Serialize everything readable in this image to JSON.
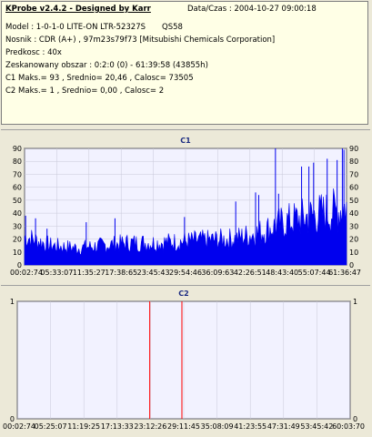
{
  "info": {
    "app_title": "KProbe v2.4.2 - Designed by Karr",
    "date_label": "Data/Czas : 2004-10-27 09:00:18",
    "model": "Model : 1-0-1-0 LITE-ON LTR-52327S",
    "model_extra": "QS58",
    "media": "Nosnik : CDR (A+) , 97m23s79f73 [Mitsubishi Chemicals Corporation]",
    "speed": "Predkosc : 40x",
    "scanned": "Zeskanowany obszar : 0:2:0 (0) - 61:39:58 (43855h)",
    "c1_stats": "C1 Maks.= 93 , Srednio= 20,46 , Calosc= 73505",
    "c2_stats": "C2 Maks.= 1 , Srednio= 0,00 , Calosc= 2"
  },
  "colors": {
    "c1_fill": "#0000ee",
    "c2_line": "#ff0000",
    "plot_bg": "#f2f2ff",
    "grid": "#c8c8d8"
  },
  "chart_data": [
    {
      "type": "area",
      "title": "C1",
      "ylim": [
        0,
        90
      ],
      "yticks": [
        0,
        10,
        20,
        30,
        40,
        50,
        60,
        70,
        80,
        90
      ],
      "xticks": [
        "00:02:74",
        "05:33:07",
        "11:35:27",
        "17:38:65",
        "23:45:43",
        "29:54:46",
        "36:09:63",
        "42:26:51",
        "48:43:40",
        "55:07:44",
        "61:36:47"
      ],
      "x_minutes": [
        0,
        5,
        10,
        15,
        20,
        25,
        30,
        35,
        40,
        45,
        50,
        55,
        60,
        61.6
      ],
      "baseline": [
        22,
        15,
        13,
        15,
        17,
        17,
        18,
        19,
        20,
        25,
        33,
        38,
        42,
        45
      ],
      "peaks": [
        {
          "x_minute": 0.2,
          "value": 38
        },
        {
          "x_minute": 2.1,
          "value": 36
        },
        {
          "x_minute": 4.3,
          "value": 28
        },
        {
          "x_minute": 11.8,
          "value": 33
        },
        {
          "x_minute": 17.3,
          "value": 36
        },
        {
          "x_minute": 30.6,
          "value": 37
        },
        {
          "x_minute": 40.4,
          "value": 49
        },
        {
          "x_minute": 44.2,
          "value": 56
        },
        {
          "x_minute": 44.8,
          "value": 54
        },
        {
          "x_minute": 48.0,
          "value": 90
        },
        {
          "x_minute": 48.6,
          "value": 55
        },
        {
          "x_minute": 53.0,
          "value": 76
        },
        {
          "x_minute": 54.4,
          "value": 76
        },
        {
          "x_minute": 55.3,
          "value": 79
        },
        {
          "x_minute": 57.9,
          "value": 82
        },
        {
          "x_minute": 59.8,
          "value": 81
        },
        {
          "x_minute": 60.8,
          "value": 90
        },
        {
          "x_minute": 61.1,
          "value": 89
        }
      ]
    },
    {
      "type": "bar",
      "title": "C2",
      "ylim": [
        0,
        1
      ],
      "yticks": [
        0,
        1
      ],
      "xticks": [
        "00:02:74",
        "05:25:07",
        "11:19:25",
        "17:13:33",
        "23:12:26",
        "29:11:45",
        "35:08:09",
        "41:23:55",
        "47:31:49",
        "53:45:42",
        "60:03:70"
      ],
      "errors": [
        {
          "x_minute": 23.9,
          "value": 1
        },
        {
          "x_minute": 29.7,
          "value": 1
        }
      ]
    }
  ]
}
